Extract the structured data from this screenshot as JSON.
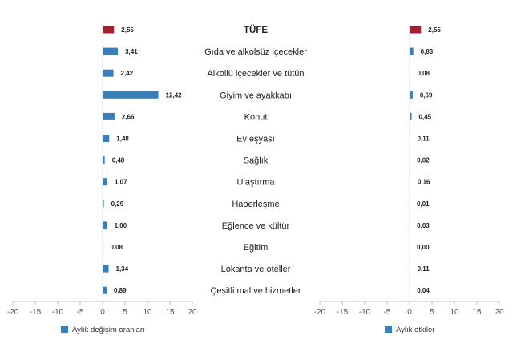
{
  "chart_data": [
    {
      "type": "bar",
      "orientation": "horizontal",
      "categories": [
        "TÜFE",
        "Gıda ve alkolsüz içecekler",
        "Alkollü içecekler ve tütün",
        "Giyim ve ayakkabı",
        "Konut",
        "Ev eşyası",
        "Sağlık",
        "Ulaştırma",
        "Haberleşme",
        "Eğlence ve kültür",
        "Eğitim",
        "Lokanta ve oteller",
        "Çeşitli mal ve hizmetler"
      ],
      "series": [
        {
          "name": "Aylık değişim oranları",
          "values": [
            2.55,
            3.41,
            2.42,
            12.42,
            2.66,
            1.48,
            0.48,
            1.07,
            0.29,
            1.0,
            0.08,
            1.34,
            0.89
          ],
          "labels": [
            "2,55",
            "3,41",
            "2,42",
            "12,42",
            "2,66",
            "1,48",
            "0,48",
            "1,07",
            "0,29",
            "1,00",
            "0,08",
            "1,34",
            "0,89"
          ]
        }
      ],
      "xlim": [
        -20,
        20
      ],
      "xticks": [
        "-20",
        "-15",
        "-10",
        "-5",
        "0",
        "5",
        "10",
        "15",
        "20"
      ],
      "grid": false,
      "legend": "bottom-left",
      "colors": {
        "highlight": "#a3212f",
        "bar": "#3a7db8"
      }
    },
    {
      "type": "bar",
      "orientation": "horizontal",
      "categories": [
        "TÜFE",
        "Gıda ve alkolsüz içecekler",
        "Alkollü içecekler ve tütün",
        "Giyim ve ayakkabı",
        "Konut",
        "Ev eşyası",
        "Sağlık",
        "Ulaştırma",
        "Haberleşme",
        "Eğlence ve kültür",
        "Eğitim",
        "Lokanta ve oteller",
        "Çeşitli mal ve hizmetler"
      ],
      "series": [
        {
          "name": "Aylık etkiler",
          "values": [
            2.55,
            0.83,
            0.08,
            0.69,
            0.45,
            0.11,
            0.02,
            0.16,
            0.01,
            0.03,
            0.0,
            0.11,
            0.04
          ],
          "labels": [
            "2,55",
            "0,83",
            "0,08",
            "0,69",
            "0,45",
            "0,11",
            "0,02",
            "0,16",
            "0,01",
            "0,03",
            "0,00",
            "0,11",
            "0,04"
          ]
        }
      ],
      "xlim": [
        -20,
        20
      ],
      "xticks": [
        "-20",
        "-15",
        "-10",
        "-5",
        "0",
        "5",
        "10",
        "15",
        "20"
      ],
      "grid": false,
      "legend": "bottom-right",
      "colors": {
        "highlight": "#a3212f",
        "bar": "#3a7db8"
      }
    }
  ]
}
